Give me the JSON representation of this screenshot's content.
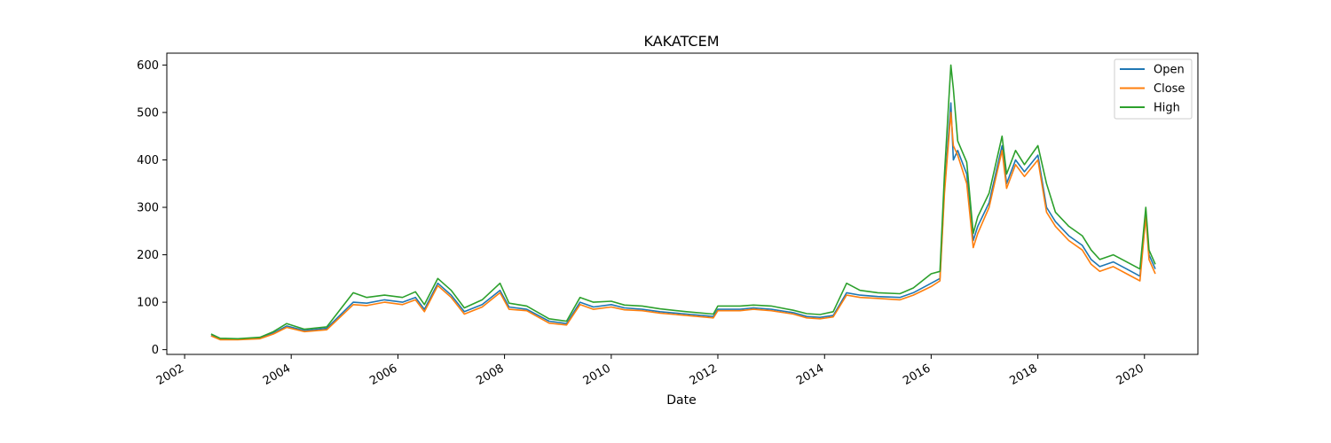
{
  "chart_data": {
    "type": "line",
    "title": "KAKATCEM",
    "xlabel": "Date",
    "ylabel": "",
    "xlim": [
      "2001-09-01",
      "2021-01-01"
    ],
    "ylim": [
      -10,
      625
    ],
    "x_ticks": [
      "2002",
      "2004",
      "2006",
      "2008",
      "2010",
      "2012",
      "2014",
      "2016",
      "2018",
      "2020"
    ],
    "y_ticks": [
      0,
      100,
      200,
      300,
      400,
      500,
      600
    ],
    "legend": {
      "placement": "top-right",
      "entries": [
        "Open",
        "Close",
        "High"
      ]
    },
    "grid": false,
    "x": [
      "2002-07-01",
      "2002-09-01",
      "2003-01-01",
      "2003-06-01",
      "2003-09-01",
      "2003-12-01",
      "2004-04-01",
      "2004-09-01",
      "2005-03-01",
      "2005-06-01",
      "2005-10-01",
      "2006-02-01",
      "2006-05-01",
      "2006-07-01",
      "2006-10-01",
      "2007-01-01",
      "2007-04-01",
      "2007-08-01",
      "2007-12-01",
      "2008-02-01",
      "2008-06-01",
      "2008-11-01",
      "2009-03-01",
      "2009-06-01",
      "2009-09-01",
      "2010-01-01",
      "2010-04-01",
      "2010-08-01",
      "2010-12-01",
      "2011-06-01",
      "2011-12-01",
      "2012-01-01",
      "2012-06-01",
      "2012-09-01",
      "2013-01-01",
      "2013-06-01",
      "2013-09-01",
      "2013-12-01",
      "2014-03-01",
      "2014-06-01",
      "2014-09-01",
      "2015-01-01",
      "2015-06-01",
      "2015-09-01",
      "2016-01-01",
      "2016-03-01",
      "2016-04-01",
      "2016-05-15",
      "2016-06-01",
      "2016-07-01",
      "2016-09-01",
      "2016-10-15",
      "2016-11-15",
      "2017-02-01",
      "2017-05-01",
      "2017-06-01",
      "2017-08-01",
      "2017-10-01",
      "2018-01-01",
      "2018-03-01",
      "2018-05-01",
      "2018-08-01",
      "2018-11-01",
      "2019-01-01",
      "2019-03-01",
      "2019-06-01",
      "2019-09-01",
      "2019-12-01",
      "2020-01-10",
      "2020-02-01",
      "2020-03-15"
    ],
    "series": [
      {
        "name": "Open",
        "color": "#1f77b4",
        "values": [
          30,
          22,
          22,
          24,
          35,
          50,
          40,
          45,
          100,
          98,
          105,
          100,
          110,
          85,
          140,
          115,
          80,
          95,
          125,
          90,
          85,
          60,
          55,
          100,
          90,
          95,
          88,
          85,
          80,
          75,
          70,
          85,
          85,
          88,
          85,
          78,
          70,
          68,
          72,
          120,
          115,
          112,
          110,
          120,
          140,
          150,
          340,
          520,
          400,
          420,
          370,
          230,
          260,
          310,
          430,
          350,
          400,
          375,
          410,
          300,
          270,
          240,
          220,
          190,
          175,
          185,
          170,
          155,
          290,
          200,
          170
        ]
      },
      {
        "name": "Close",
        "color": "#ff7f0e",
        "values": [
          29,
          21,
          21,
          23,
          33,
          47,
          38,
          42,
          95,
          93,
          100,
          95,
          105,
          80,
          135,
          110,
          75,
          90,
          120,
          85,
          82,
          56,
          52,
          95,
          85,
          90,
          84,
          82,
          77,
          72,
          67,
          82,
          82,
          85,
          82,
          75,
          67,
          65,
          69,
          115,
          110,
          108,
          105,
          115,
          133,
          145,
          330,
          500,
          430,
          410,
          350,
          215,
          245,
          300,
          420,
          340,
          390,
          365,
          400,
          290,
          260,
          230,
          210,
          180,
          165,
          175,
          160,
          145,
          280,
          190,
          160
        ]
      },
      {
        "name": "High",
        "color": "#2ca02c",
        "values": [
          33,
          24,
          23,
          26,
          38,
          55,
          43,
          48,
          120,
          110,
          115,
          110,
          122,
          95,
          150,
          125,
          88,
          105,
          140,
          98,
          92,
          65,
          60,
          110,
          100,
          102,
          94,
          92,
          86,
          80,
          75,
          92,
          92,
          94,
          92,
          83,
          76,
          74,
          80,
          140,
          125,
          120,
          118,
          130,
          160,
          165,
          370,
          600,
          550,
          440,
          395,
          245,
          280,
          330,
          450,
          370,
          420,
          390,
          430,
          350,
          290,
          260,
          240,
          210,
          190,
          200,
          185,
          170,
          300,
          210,
          180
        ]
      }
    ]
  }
}
